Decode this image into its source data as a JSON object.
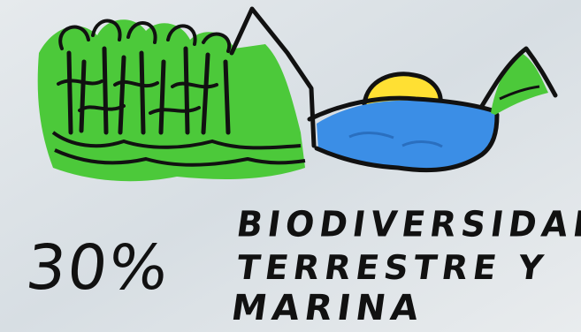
{
  "illustration": {
    "colors": {
      "background": "#dfe5e9",
      "forest": "#4cc93a",
      "water": "#3b8ee6",
      "sun": "#ffe033",
      "outline": "#111111"
    },
    "icons": [
      "forest-icon",
      "mountain-icon",
      "sun-icon",
      "water-icon",
      "island-icon"
    ]
  },
  "caption": {
    "percent": "30%",
    "line1": "BIODIVERSIDAD",
    "line2": "TERRESTRE Y",
    "line3": "MARINA"
  }
}
